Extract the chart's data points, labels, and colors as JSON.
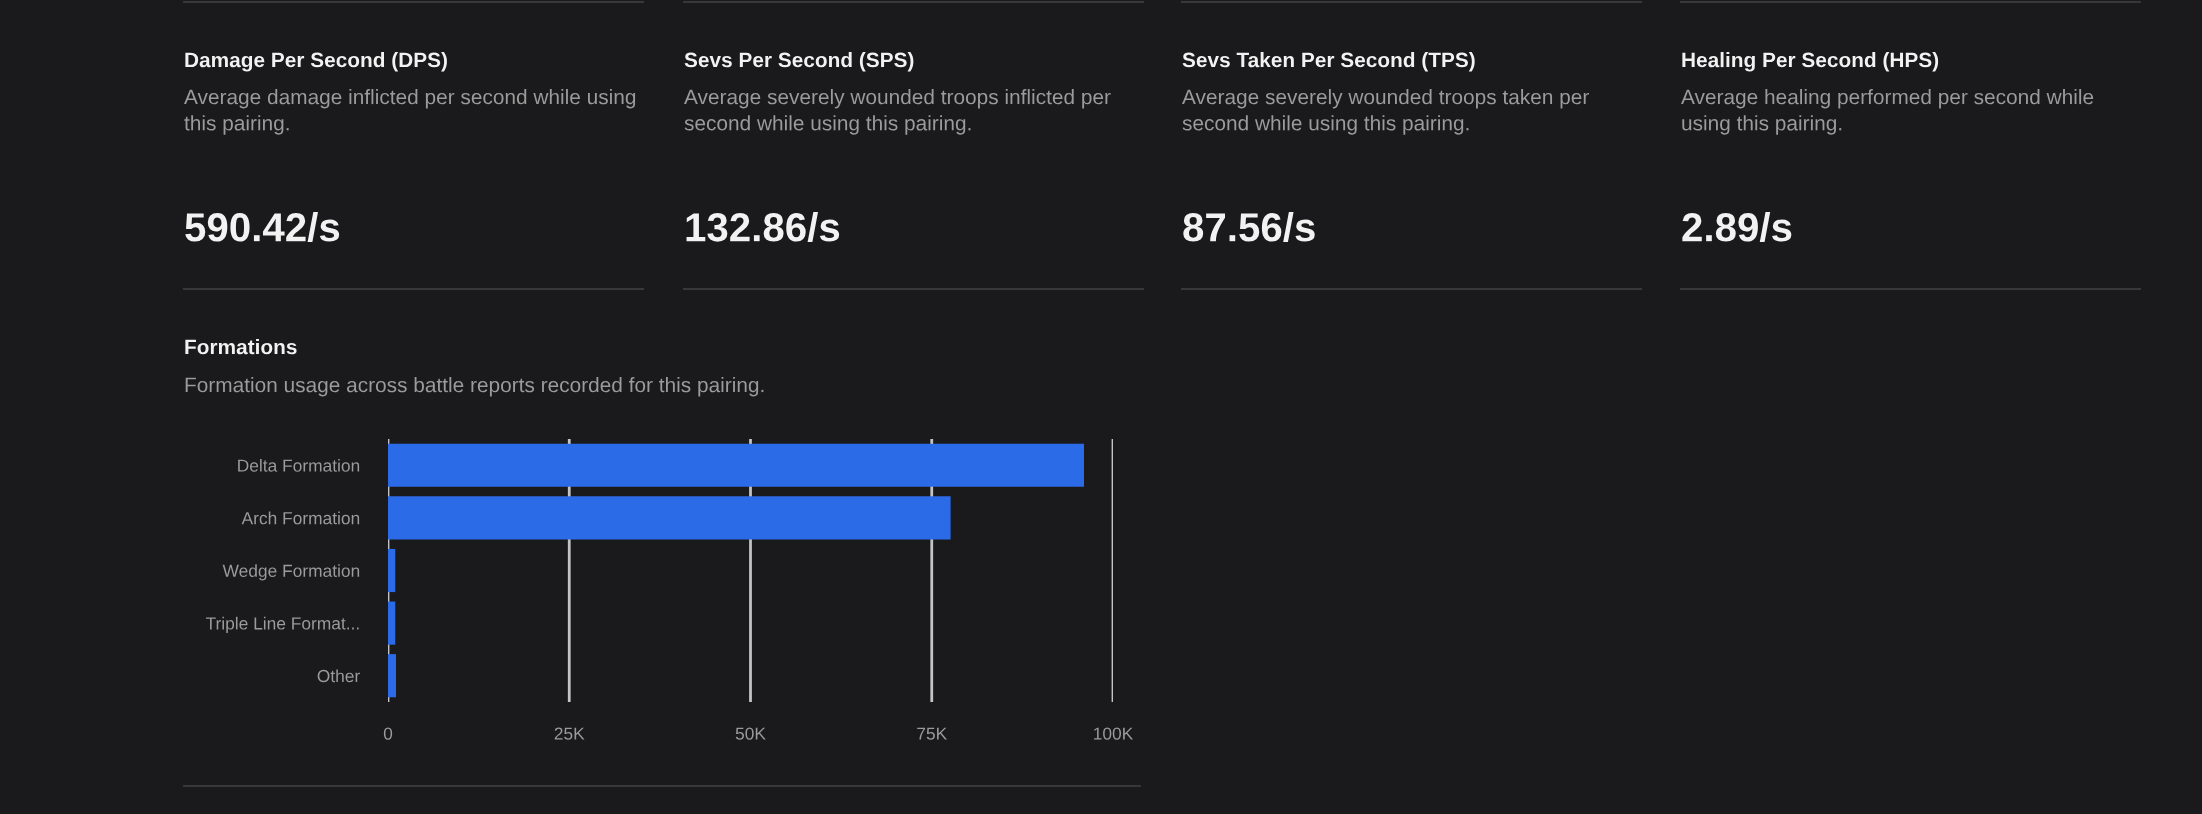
{
  "chart_data": [
    {
      "type": "other",
      "title": "Damage Per Second (DPS)",
      "subtitle": "Average damage inflicted per second while using this pairing.",
      "annotations": [
        "590.42/s"
      ]
    },
    {
      "type": "other",
      "title": "Sevs Per Second (SPS)",
      "subtitle": "Average severely wounded troops inflicted per second while using this pairing.",
      "annotations": [
        "132.86/s"
      ]
    },
    {
      "type": "other",
      "title": "Sevs Taken Per Second (TPS)",
      "subtitle": "Average severely wounded troops taken per second while using this pairing.",
      "annotations": [
        "87.56/s"
      ]
    },
    {
      "type": "other",
      "title": "Healing Per Second (HPS)",
      "subtitle": "Average healing performed per second while using this pairing.",
      "annotations": [
        "2.89/s"
      ]
    },
    {
      "type": "bar",
      "orientation": "horizontal",
      "title": "Formations",
      "subtitle": "Formation usage across battle reports recorded for this pairing.",
      "categories": [
        "Delta Formation",
        "Arch Formation",
        "Wedge Formation",
        "Triple Line Format...",
        "Other"
      ],
      "values": [
        96000,
        77600,
        1000,
        1000,
        1100
      ],
      "color": "#2c6be8",
      "xlim": [
        0,
        100000
      ],
      "xticks": [
        0,
        {
          "value": 25000,
          "label": "25K"
        },
        {
          "value": 50000,
          "label": "50K"
        },
        {
          "value": 75000,
          "label": "75K"
        },
        {
          "value": 100000,
          "label": "100K"
        }
      ],
      "grid": "x"
    }
  ]
}
